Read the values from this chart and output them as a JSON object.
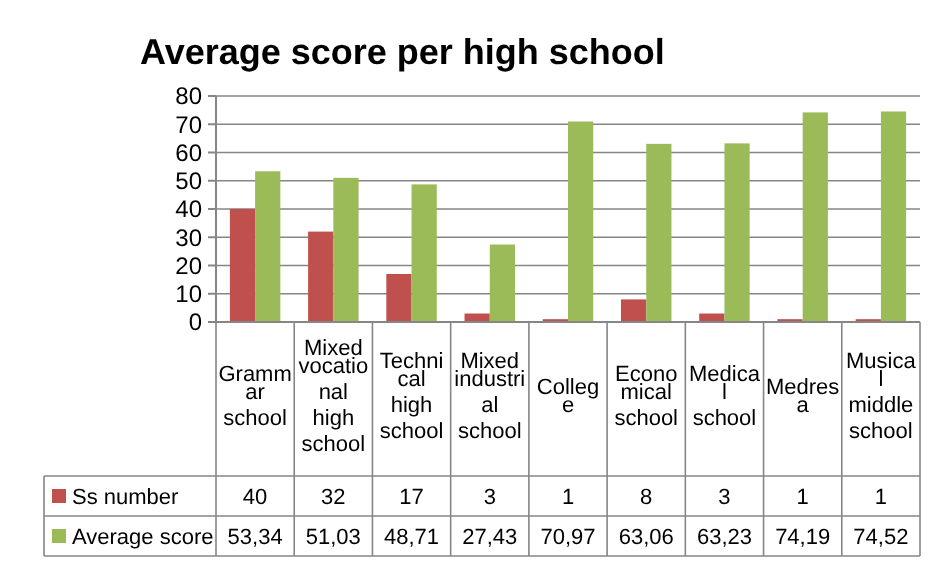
{
  "chart_data": {
    "type": "bar",
    "title": "Average score per high school",
    "categories": [
      "Grammar school",
      "Mixed vocational high school",
      "Technical high school",
      "Mixed industrial school",
      "College",
      "Economical school",
      "Medical school",
      "Medresa",
      "Musical middle school"
    ],
    "series": [
      {
        "name": "Ss number",
        "color": "#c0504d",
        "values": [
          40,
          32,
          17,
          3,
          1,
          8,
          3,
          1,
          1
        ],
        "value_labels": [
          "40",
          "32",
          "17",
          "3",
          "1",
          "8",
          "3",
          "1",
          "1"
        ]
      },
      {
        "name": "Average score",
        "color": "#9bbb59",
        "values": [
          53.34,
          51.03,
          48.71,
          27.43,
          70.97,
          63.06,
          63.23,
          74.19,
          74.52
        ],
        "value_labels": [
          "53,34",
          "51,03",
          "48,71",
          "27,43",
          "70,97",
          "63,06",
          "63,23",
          "74,19",
          "74,52"
        ]
      }
    ],
    "ylim": [
      0,
      80
    ],
    "yticks": [
      0,
      10,
      20,
      30,
      40,
      50,
      60,
      70,
      80
    ],
    "grid": "y",
    "legend": "bottom"
  }
}
